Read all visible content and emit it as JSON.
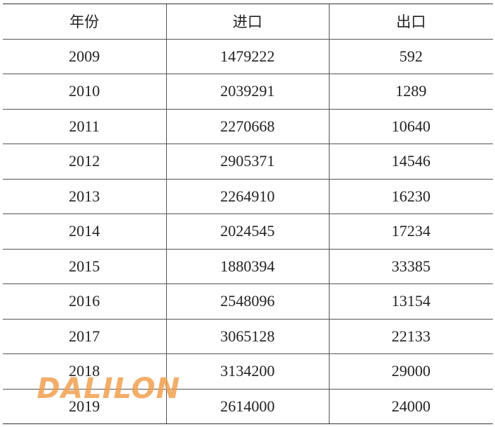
{
  "table": {
    "header": [
      "年份",
      "进口",
      "出口"
    ],
    "rows": [
      [
        "2009",
        "1479222",
        "592"
      ],
      [
        "2010",
        "2039291",
        "1289"
      ],
      [
        "2011",
        "2270668",
        "10640"
      ],
      [
        "2012",
        "2905371",
        "14546"
      ],
      [
        "2013",
        "2264910",
        "16230"
      ],
      [
        "2014",
        "2024545",
        "17234"
      ],
      [
        "2015",
        "1880394",
        "33385"
      ],
      [
        "2016",
        "2548096",
        "13154"
      ],
      [
        "2017",
        "3065128",
        "22133"
      ],
      [
        "2018",
        "3134200",
        "29000"
      ],
      [
        "2019",
        "2614000",
        "24000"
      ]
    ]
  },
  "watermark": "DALILON"
}
